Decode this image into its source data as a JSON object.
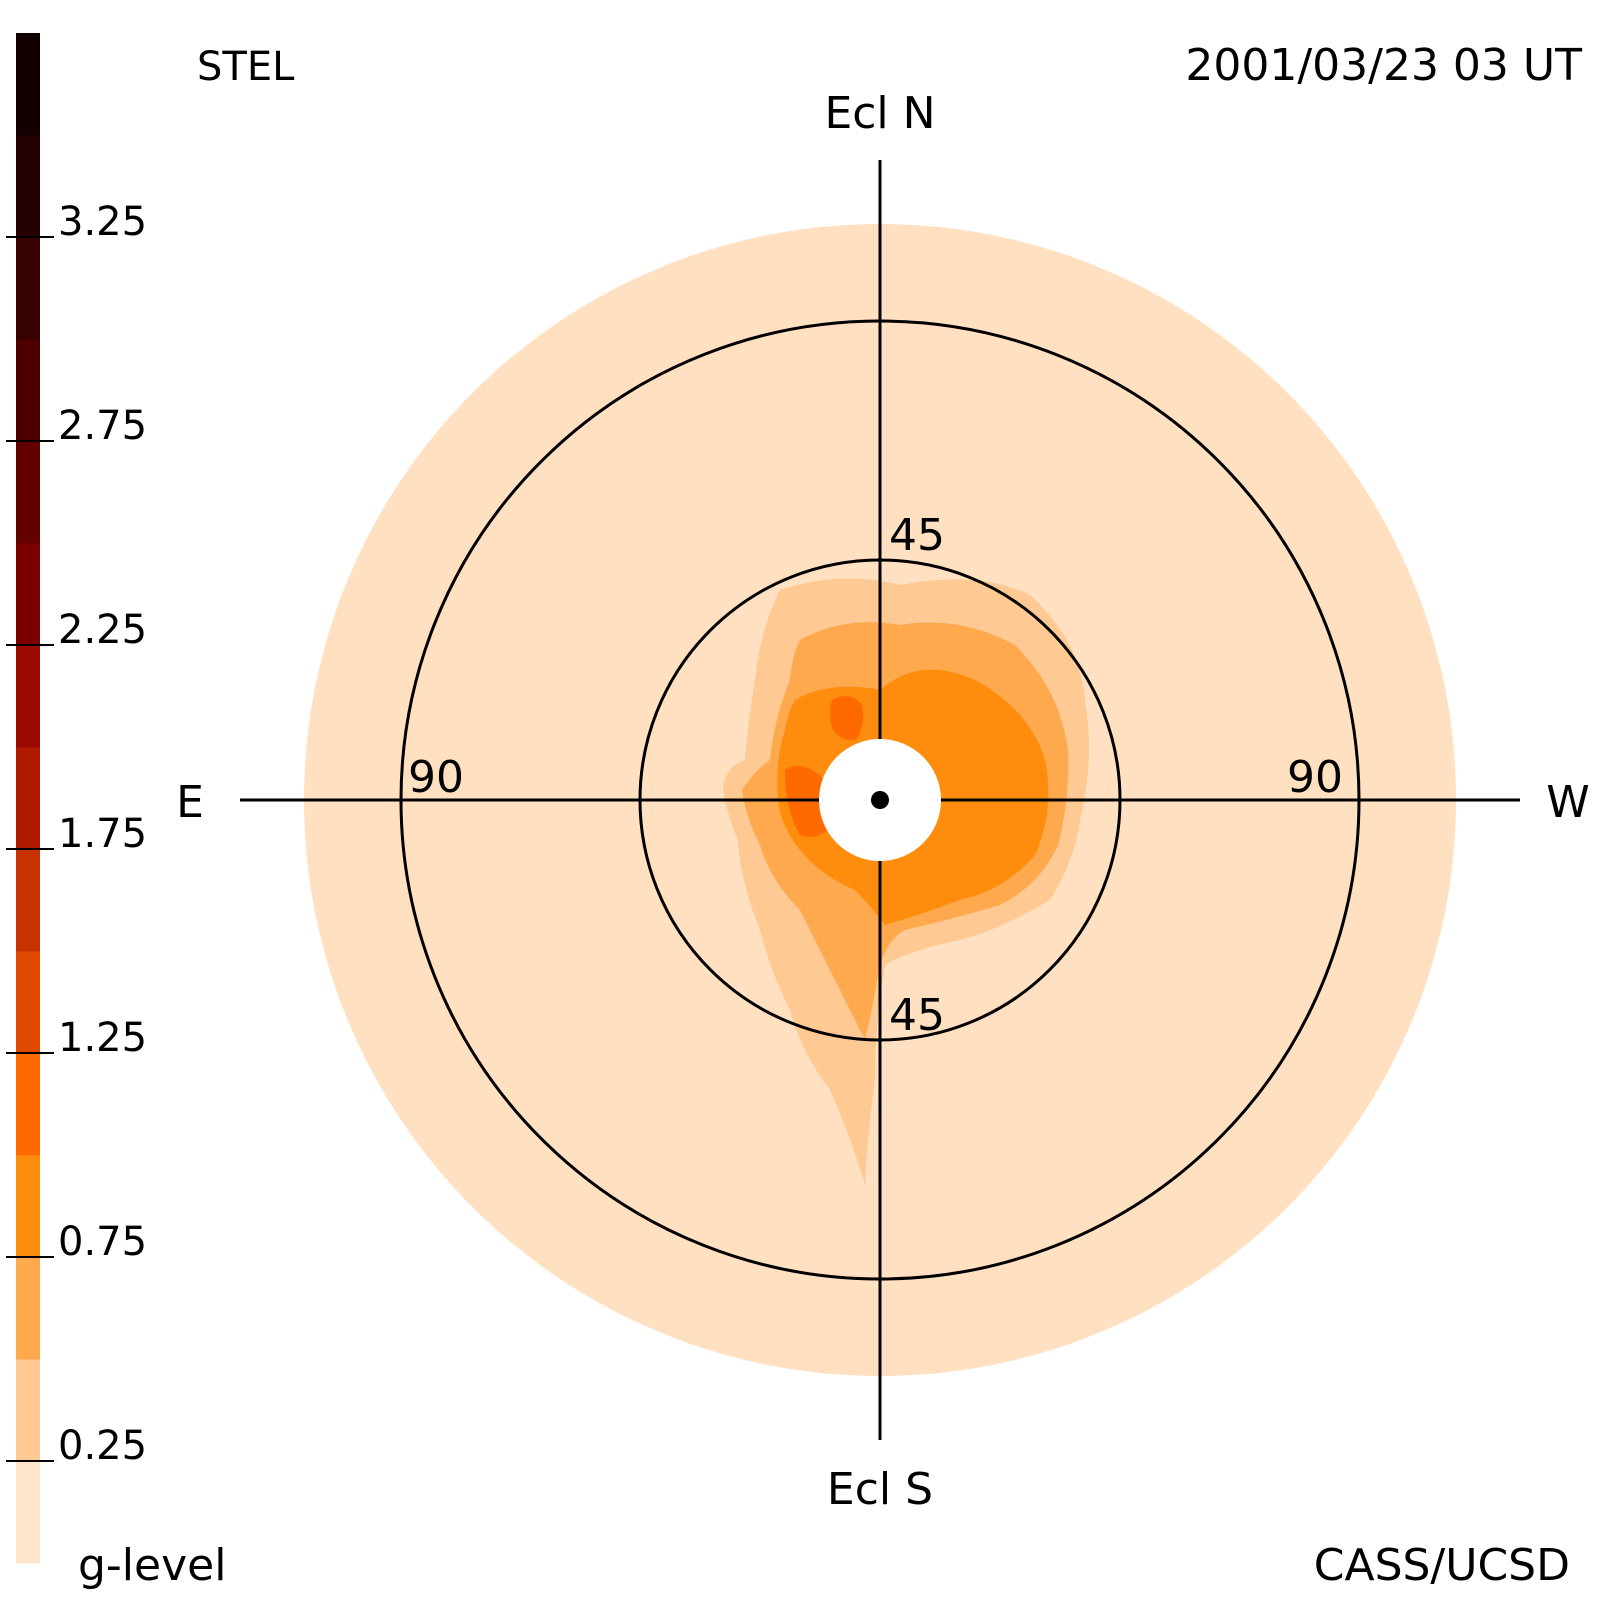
{
  "header": {
    "instrument": "STEL",
    "timestamp": "2001/03/23 03 UT"
  },
  "footer": {
    "credit": "CASS/UCSD"
  },
  "colorbar": {
    "title": "g-level",
    "ticks": [
      "3.25",
      "2.75",
      "2.25",
      "1.75",
      "1.25",
      "0.75",
      "0.25"
    ],
    "tick_values": [
      3.25,
      2.75,
      2.25,
      1.75,
      1.25,
      0.75,
      0.25
    ],
    "range": [
      0,
      3.75
    ],
    "step": 0.25,
    "colors": [
      "#ffe4cc",
      "#ffc994",
      "#ffa94f",
      "#ff8d0d",
      "#ff6a00",
      "#e04a00",
      "#c83200",
      "#b01b00",
      "#9b0a00",
      "#7d0000",
      "#630000",
      "#4c0000",
      "#380000",
      "#240000",
      "#120000"
    ]
  },
  "directions": {
    "north": "Ecl N",
    "south": "Ecl S",
    "east": "E",
    "west": "W"
  },
  "ring_labels": {
    "inner_top": "45",
    "inner_bottom": "45",
    "outer_left": "90",
    "outer_right": "90"
  },
  "chart_data": {
    "type": "heatmap",
    "projection": "fisheye sky map centered on the Sun",
    "rings_deg": [
      45,
      90
    ],
    "sky_limit_deg": 110,
    "background_level": 0.1,
    "regions": [
      {
        "level": 0.35,
        "description": "outer enhanced envelope, extends to the south"
      },
      {
        "level": 0.6,
        "description": "enhanced region around the Sun, brighter to the west"
      },
      {
        "level": 0.85,
        "description": "main western and southern enhancement"
      },
      {
        "level": 1.1,
        "description": "peak patches near the Sun on the east side"
      }
    ],
    "colors": {
      "sky": "#ffe0c0",
      "sun_mask": "#ffffff",
      "grid": "#000000"
    }
  }
}
